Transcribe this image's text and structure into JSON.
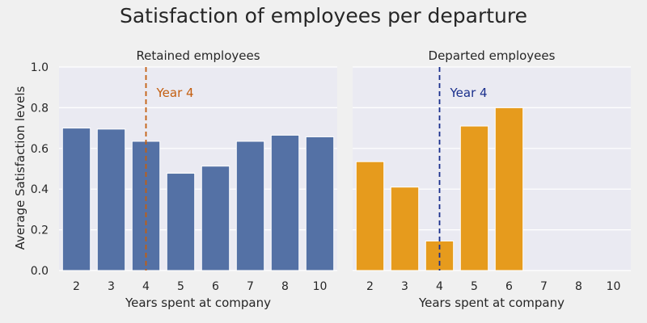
{
  "chart_data": {
    "type": "bar",
    "title": "Satisfaction of employees per departure",
    "ylabel": "Average Satisfaction levels",
    "ylim": [
      0,
      1.0
    ],
    "yticks": [
      "0.0",
      "0.2",
      "0.4",
      "0.6",
      "0.8",
      "1.0"
    ],
    "categories": [
      "2",
      "3",
      "4",
      "5",
      "6",
      "7",
      "8",
      "10"
    ],
    "grid": true,
    "panels": [
      {
        "title": "Retained employees",
        "xlabel": "Years spent at company",
        "color": "#5471a5",
        "values": [
          0.7,
          0.695,
          0.635,
          0.478,
          0.513,
          0.635,
          0.665,
          0.657
        ],
        "reference_line": {
          "x": "4",
          "label": "Year 4",
          "color": "#c45e0f"
        }
      },
      {
        "title": "Departed employees",
        "xlabel": "Years spent at company",
        "color": "#e69b1d",
        "values": [
          0.535,
          0.41,
          0.145,
          0.71,
          0.8,
          null,
          null,
          null
        ],
        "reference_line": {
          "x": "4",
          "label": "Year 4",
          "color": "#1a2f8c"
        }
      }
    ]
  }
}
